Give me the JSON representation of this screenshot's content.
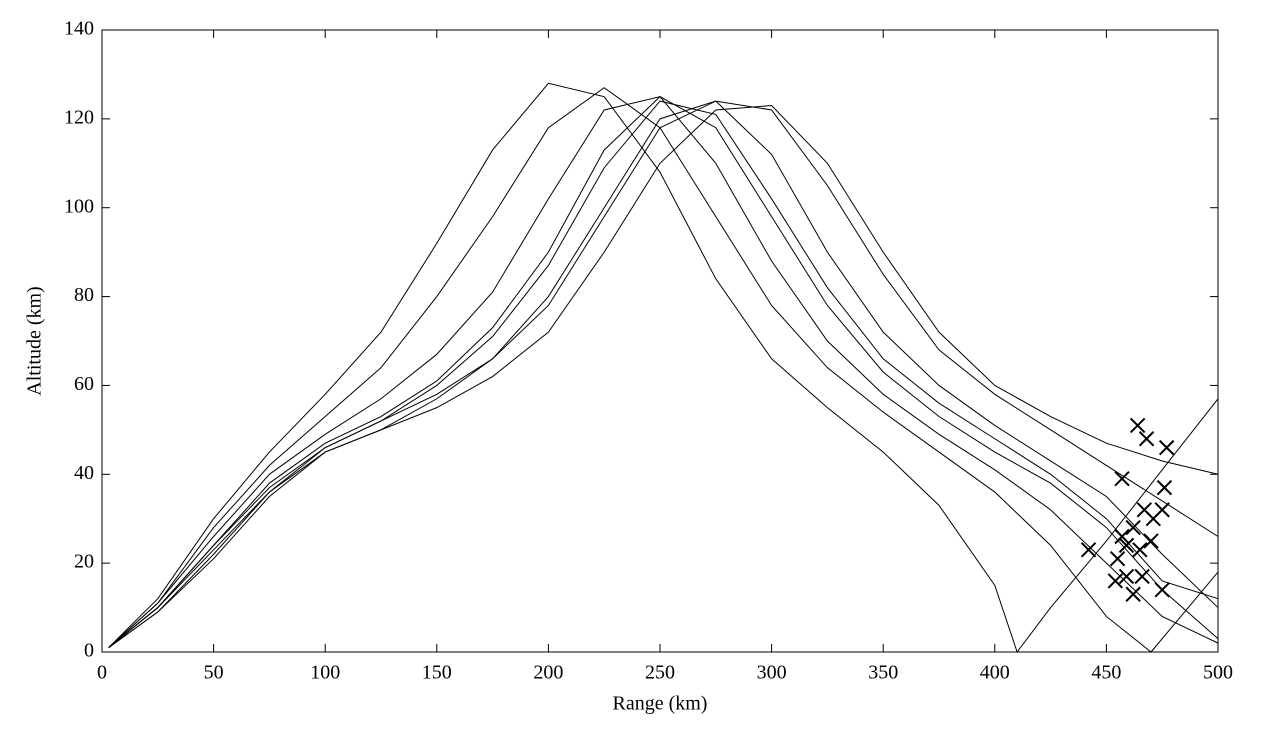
{
  "chart_data": {
    "type": "line",
    "xlabel": "Range (km)",
    "ylabel": "Altitude (km)",
    "xlim": [
      0,
      500
    ],
    "ylim": [
      0,
      140
    ],
    "xticks": [
      0,
      50,
      100,
      150,
      200,
      250,
      300,
      350,
      400,
      450,
      500
    ],
    "yticks": [
      0,
      20,
      40,
      60,
      80,
      100,
      120,
      140
    ],
    "color": "#000000",
    "series": [
      {
        "x": [
          3,
          25,
          50,
          75,
          100,
          125,
          150,
          175,
          200,
          225,
          250,
          275,
          300,
          325,
          350,
          375,
          400,
          410,
          425,
          450,
          475,
          500
        ],
        "values": [
          1,
          12,
          30,
          45,
          58,
          72,
          92,
          113,
          128,
          125,
          108,
          84,
          66,
          55,
          45,
          33,
          15,
          0,
          10,
          25,
          41,
          57
        ]
      },
      {
        "x": [
          3,
          25,
          50,
          75,
          100,
          125,
          150,
          175,
          200,
          225,
          250,
          275,
          300,
          325,
          350,
          375,
          400,
          425,
          450,
          470,
          485,
          500
        ],
        "values": [
          1,
          11,
          28,
          42,
          53,
          64,
          80,
          98,
          118,
          127,
          118,
          98,
          78,
          64,
          54,
          45,
          36,
          24,
          8,
          0,
          9,
          18
        ]
      },
      {
        "x": [
          3,
          25,
          50,
          75,
          100,
          125,
          150,
          175,
          200,
          225,
          250,
          275,
          300,
          325,
          350,
          375,
          400,
          425,
          450,
          475,
          500
        ],
        "values": [
          1,
          11,
          26,
          40,
          49,
          57,
          67,
          81,
          102,
          122,
          125,
          110,
          88,
          70,
          58,
          49,
          41,
          32,
          20,
          8,
          2
        ]
      },
      {
        "x": [
          3,
          25,
          50,
          75,
          100,
          125,
          150,
          175,
          200,
          225,
          250,
          275,
          300,
          325,
          350,
          375,
          400,
          425,
          450,
          475,
          500
        ],
        "values": [
          1,
          10,
          24,
          38,
          47,
          53,
          61,
          73,
          90,
          113,
          125,
          118,
          98,
          78,
          63,
          53,
          45,
          38,
          28,
          14,
          3
        ]
      },
      {
        "x": [
          3,
          25,
          50,
          75,
          100,
          125,
          150,
          175,
          200,
          225,
          250,
          275,
          300,
          325,
          350,
          375,
          400,
          425,
          450,
          475,
          500
        ],
        "values": [
          1,
          10,
          24,
          37,
          46,
          52,
          60,
          71,
          87,
          109,
          124,
          121,
          102,
          82,
          66,
          56,
          48,
          40,
          30,
          16,
          12
        ]
      },
      {
        "x": [
          3,
          25,
          50,
          75,
          100,
          125,
          150,
          175,
          200,
          225,
          250,
          275,
          300,
          325,
          350,
          375,
          400,
          425,
          450,
          475,
          500
        ],
        "values": [
          1,
          10,
          23,
          36,
          45,
          50,
          57,
          66,
          80,
          100,
          120,
          124,
          112,
          90,
          72,
          60,
          51,
          43,
          35,
          22,
          10
        ]
      },
      {
        "x": [
          3,
          25,
          50,
          75,
          100,
          125,
          150,
          175,
          200,
          225,
          250,
          275,
          300,
          325,
          350,
          375,
          400,
          425,
          450,
          475,
          500
        ],
        "values": [
          1,
          9,
          22,
          36,
          46,
          52,
          58,
          66,
          78,
          98,
          118,
          124,
          122,
          105,
          85,
          68,
          58,
          50,
          42,
          34,
          26
        ]
      },
      {
        "x": [
          3,
          25,
          50,
          75,
          100,
          125,
          150,
          175,
          200,
          225,
          250,
          275,
          300,
          325,
          350,
          375,
          400,
          425,
          450,
          475,
          500
        ],
        "values": [
          1,
          9,
          21,
          35,
          45,
          50,
          55,
          62,
          72,
          90,
          110,
          122,
          123,
          110,
          90,
          72,
          60,
          53,
          47,
          43,
          40
        ]
      }
    ],
    "markers": {
      "x": [
        464,
        468,
        477,
        457,
        476,
        467,
        475,
        471,
        462,
        457,
        470,
        459,
        465,
        442,
        455,
        459,
        466,
        454,
        462,
        475
      ],
      "y": [
        51,
        48,
        46,
        39,
        37,
        32,
        32,
        30,
        28,
        26,
        25,
        24,
        23,
        23,
        21,
        17,
        17,
        16,
        13,
        14
      ]
    }
  }
}
